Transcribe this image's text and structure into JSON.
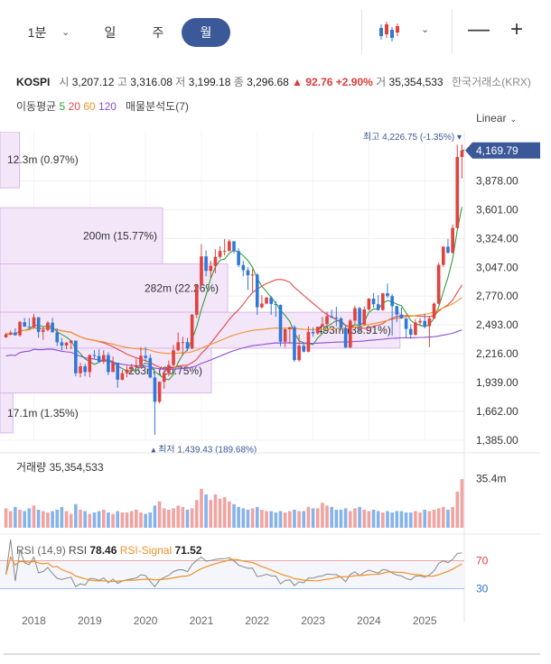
{
  "toolbar": {
    "tabs": [
      "1분",
      "일",
      "주",
      "월"
    ],
    "active_tab": "월",
    "chart_type_icon": "candlestick-icon",
    "minus": "—",
    "plus": "+"
  },
  "quote": {
    "symbol": "KOSPI",
    "open_label": "시",
    "open": "3,207.12",
    "high_label": "고",
    "high": "3,316.08",
    "low_label": "저",
    "low": "3,199.18",
    "close_label": "종",
    "close": "3,296.68",
    "change": "▲ 92.76",
    "change_pct": "+2.90%",
    "volume_label": "거",
    "volume": "35,354,533",
    "exchange": "한국거래소(KRX)"
  },
  "ma_legend": {
    "label": "이동평균",
    "periods": [
      {
        "value": "5",
        "color": "#2e9f3e"
      },
      {
        "value": "20",
        "color": "#e54848"
      },
      {
        "value": "60",
        "color": "#f0912a"
      },
      {
        "value": "120",
        "color": "#8a4fd3"
      }
    ],
    "profile_label": "매물분석도(7)"
  },
  "scale_label": "Linear",
  "colors": {
    "up": "#e0423e",
    "down": "#2f78d8",
    "ma5": "#2e9f3e",
    "ma20": "#e54848",
    "ma60": "#f0912a",
    "ma120": "#8a4fd3",
    "profile": "#f3e6f9",
    "profile_border": "#d9b8ea",
    "price_tag": "#3b5998",
    "rsi": "#888888",
    "rsi_signal": "#f0912a",
    "level70": "#e0423e",
    "level30": "#2f78d8"
  },
  "chart_data": {
    "type": "candlestick",
    "ylim": [
      1385,
      4350
    ],
    "yticks": [
      "1,385.00",
      "1,662.00",
      "1,939.00",
      "2,216.00",
      "2,493.00",
      "2,770.00",
      "3,047.00",
      "3,324.00",
      "3,601.00",
      "3,878.00"
    ],
    "ytick_values": [
      1385,
      1662,
      1939,
      2216,
      2493,
      2770,
      3047,
      3324,
      3601,
      3878
    ],
    "current_price": "4,169.79",
    "current_value": 4169.79,
    "high_annotation": "최고 4,226.75 (-1.35%)",
    "high_value": 4226.75,
    "low_annotation": "최저 1,439.43 (189.68%)",
    "low_value": 1439.43,
    "x_start": "2017-07",
    "xticks": [
      "2018",
      "2019",
      "2020",
      "2021",
      "2022",
      "2023",
      "2024",
      "2025"
    ],
    "candles": [
      [
        2374,
        2420,
        2368,
        2402
      ],
      [
        2400,
        2440,
        2394,
        2420
      ],
      [
        2420,
        2460,
        2390,
        2394
      ],
      [
        2394,
        2530,
        2380,
        2523
      ],
      [
        2520,
        2560,
        2480,
        2476
      ],
      [
        2476,
        2560,
        2470,
        2467
      ],
      [
        2470,
        2600,
        2460,
        2566
      ],
      [
        2566,
        2570,
        2370,
        2427
      ],
      [
        2427,
        2470,
        2350,
        2445
      ],
      [
        2445,
        2530,
        2430,
        2515
      ],
      [
        2515,
        2560,
        2420,
        2423
      ],
      [
        2423,
        2460,
        2290,
        2326
      ],
      [
        2326,
        2370,
        2250,
        2295
      ],
      [
        2295,
        2330,
        2260,
        2322
      ],
      [
        2322,
        2340,
        2260,
        2343
      ],
      [
        2343,
        2340,
        2000,
        2029
      ],
      [
        2029,
        2130,
        1990,
        2096
      ],
      [
        2096,
        2120,
        2000,
        2041
      ],
      [
        2041,
        2210,
        1990,
        2204
      ],
      [
        2204,
        2250,
        2170,
        2195
      ],
      [
        2195,
        2260,
        2130,
        2140
      ],
      [
        2140,
        2250,
        2120,
        2204
      ],
      [
        2204,
        2230,
        2010,
        2041
      ],
      [
        2041,
        2190,
        2040,
        2130
      ],
      [
        2130,
        2130,
        1890,
        1967
      ],
      [
        1967,
        2060,
        1960,
        2029
      ],
      [
        2029,
        2100,
        1990,
        2064
      ],
      [
        2064,
        2120,
        2030,
        2088
      ],
      [
        2088,
        2170,
        2080,
        2107
      ],
      [
        2107,
        2280,
        2080,
        2197
      ],
      [
        2197,
        2280,
        2140,
        2176
      ],
      [
        2176,
        2210,
        1980,
        1988
      ],
      [
        1988,
        2020,
        1439,
        1755
      ],
      [
        1755,
        1950,
        1740,
        1947
      ],
      [
        1947,
        2060,
        1880,
        2030
      ],
      [
        2030,
        2150,
        2000,
        2108
      ],
      [
        2108,
        2300,
        2090,
        2249
      ],
      [
        2249,
        2420,
        2240,
        2326
      ],
      [
        2326,
        2380,
        2200,
        2328
      ],
      [
        2328,
        2370,
        2240,
        2267
      ],
      [
        2267,
        2600,
        2260,
        2591
      ],
      [
        2591,
        2880,
        2560,
        2873
      ],
      [
        2873,
        3270,
        2870,
        3152
      ],
      [
        3152,
        3210,
        2960,
        3013
      ],
      [
        3013,
        3110,
        2940,
        3061
      ],
      [
        3061,
        3220,
        2990,
        3147
      ],
      [
        3147,
        3250,
        3130,
        3203
      ],
      [
        3203,
        3320,
        3160,
        3204
      ],
      [
        3204,
        3316,
        3200,
        3297
      ],
      [
        3297,
        3300,
        3180,
        3202
      ],
      [
        3202,
        3230,
        3050,
        3068
      ],
      [
        3068,
        3110,
        2960,
        3019
      ],
      [
        3019,
        3050,
        2830,
        2970
      ],
      [
        2970,
        3030,
        2810,
        2977
      ],
      [
        2977,
        2990,
        2590,
        2663
      ],
      [
        2663,
        2780,
        2650,
        2699
      ],
      [
        2699,
        2760,
        2690,
        2757
      ],
      [
        2757,
        2770,
        2590,
        2695
      ],
      [
        2695,
        2720,
        2570,
        2685
      ],
      [
        2685,
        2690,
        2290,
        2332
      ],
      [
        2332,
        2460,
        2280,
        2451
      ],
      [
        2451,
        2470,
        2310,
        2472
      ],
      [
        2472,
        2490,
        2140,
        2155
      ],
      [
        2155,
        2400,
        2140,
        2293
      ],
      [
        2293,
        2310,
        2230,
        2236
      ],
      [
        2236,
        2480,
        2230,
        2425
      ],
      [
        2425,
        2470,
        2380,
        2412
      ],
      [
        2412,
        2460,
        2400,
        2476
      ],
      [
        2476,
        2570,
        2470,
        2501
      ],
      [
        2501,
        2620,
        2480,
        2577
      ],
      [
        2577,
        2640,
        2560,
        2564
      ],
      [
        2564,
        2668,
        2480,
        2556
      ],
      [
        2556,
        2570,
        2440,
        2465
      ],
      [
        2465,
        2490,
        2270,
        2277
      ],
      [
        2277,
        2550,
        2270,
        2535
      ],
      [
        2535,
        2680,
        2500,
        2655
      ],
      [
        2655,
        2670,
        2420,
        2497
      ],
      [
        2497,
        2670,
        2490,
        2642
      ],
      [
        2642,
        2750,
        2630,
        2746
      ],
      [
        2746,
        2800,
        2660,
        2692
      ],
      [
        2692,
        2780,
        2630,
        2636
      ],
      [
        2636,
        2800,
        2630,
        2797
      ],
      [
        2797,
        2890,
        2750,
        2770
      ],
      [
        2770,
        2790,
        2390,
        2674
      ],
      [
        2674,
        2680,
        2520,
        2593
      ],
      [
        2593,
        2660,
        2550,
        2556
      ],
      [
        2556,
        2560,
        2370,
        2455
      ],
      [
        2455,
        2500,
        2360,
        2399
      ],
      [
        2399,
        2550,
        2390,
        2517
      ],
      [
        2517,
        2560,
        2480,
        2532
      ],
      [
        2532,
        2600,
        2460,
        2481
      ],
      [
        2481,
        2580,
        2280,
        2556
      ],
      [
        2556,
        2710,
        2550,
        2698
      ],
      [
        2698,
        3090,
        2690,
        3071
      ],
      [
        3071,
        3250,
        3050,
        3245
      ],
      [
        3245,
        3320,
        3180,
        3186
      ],
      [
        3186,
        3460,
        3180,
        3425
      ],
      [
        3425,
        4226,
        3420,
        4107
      ],
      [
        4107,
        4226,
        3900,
        4170
      ]
    ],
    "volume_label": "거래량",
    "volume": "35,354,533",
    "volume_tick": "35.4m",
    "volume_tick_value": 35.4,
    "volume_ylim": [
      0,
      50
    ],
    "volume_values": [
      14,
      12,
      15,
      13,
      12,
      14,
      16,
      13,
      12,
      11,
      12,
      13,
      15,
      12,
      10,
      17,
      13,
      12,
      10,
      11,
      12,
      13,
      11,
      10,
      12,
      11,
      11,
      12,
      13,
      11,
      10,
      11,
      16,
      19,
      14,
      13,
      14,
      16,
      15,
      13,
      14,
      20,
      28,
      24,
      20,
      24,
      21,
      22,
      19,
      17,
      15,
      14,
      13,
      14,
      15,
      13,
      12,
      12,
      11,
      12,
      11,
      12,
      13,
      12,
      12,
      15,
      14,
      14,
      18,
      16,
      15,
      13,
      13,
      14,
      12,
      14,
      15,
      13,
      12,
      13,
      12,
      11,
      12,
      11,
      12,
      12,
      11,
      11,
      12,
      11,
      13,
      12,
      13,
      14,
      15,
      13,
      15,
      26,
      35
    ],
    "volume_profile": [
      {
        "label": "12.3m (0.97%)",
        "bar_frac": 0.12,
        "y_top": 4350,
        "y_bottom": 3810
      },
      {
        "label": "200m (15.77%)",
        "bar_frac": 1.0,
        "y_top": 3620,
        "y_bottom": 3080
      },
      {
        "label": "282m (22.26%)",
        "bar_frac": 1.4,
        "y_top": 3080,
        "y_bottom": 2615
      },
      {
        "label": "493m (38.91%)",
        "bar_frac": 2.46,
        "y_top": 2615,
        "y_bottom": 2270
      },
      {
        "label": "263m (20.75%)",
        "bar_frac": 1.3,
        "y_top": 2270,
        "y_bottom": 1839
      },
      {
        "label": "17.1m (1.35%)",
        "bar_frac": 0.08,
        "y_top": 1839,
        "y_bottom": 1455
      }
    ],
    "rsi_title": "RSI (14,9)",
    "rsi_label": "RSI",
    "rsi_value": "78.46",
    "rsi_signal_label": "RSI-Signal",
    "rsi_signal_value": "71.52",
    "rsi_ylim": [
      0,
      100
    ],
    "rsi_levels": [
      70,
      30
    ],
    "rsi_level_labels": [
      "70",
      "30"
    ]
  }
}
